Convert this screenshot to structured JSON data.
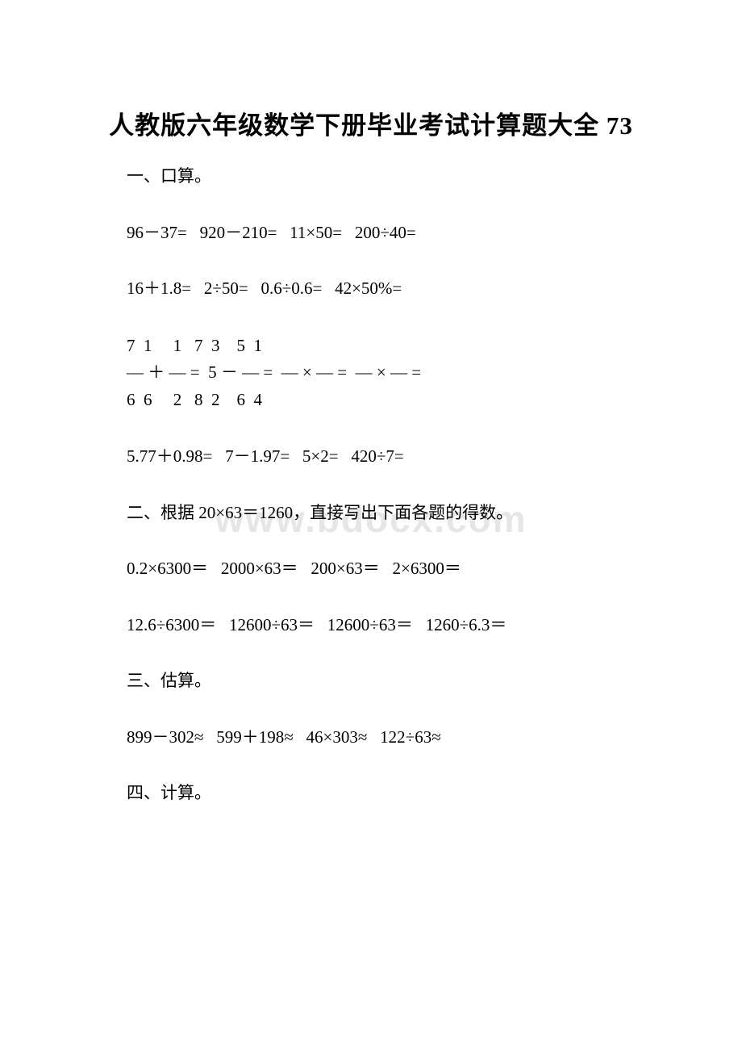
{
  "title": "人教版六年级数学下册毕业考试计算题大全 73",
  "watermark": "www.bdocx.com",
  "sections": {
    "s1": {
      "heading": "一、口算。",
      "line1": "96－37=   920－210=   11×50=   200÷40=",
      "line2": "16＋1.8=   2÷50=   0.6÷0.6=   42×50%=",
      "frac1": "7  1     1   7  3    5  1",
      "frac2": "— ＋ — =  5 － — =  — × — =  — × — =",
      "frac3": "6  6     2   8  2    6  4",
      "line3": "5.77＋0.98=   7－1.97=   5×2=   420÷7="
    },
    "s2": {
      "heading": "二、根据 20×63＝1260，直接写出下面各题的得数。",
      "line1": "0.2×6300＝   2000×63＝   200×63＝   2×6300＝",
      "line2": "12.6÷6300＝   12600÷63＝   12600÷63＝   1260÷6.3＝"
    },
    "s3": {
      "heading": "三、估算。",
      "line1": "899－302≈   599＋198≈   46×303≈   122÷63≈"
    },
    "s4": {
      "heading": "四、计算。"
    }
  },
  "style": {
    "title_fontsize": 31,
    "body_fontsize": 21,
    "text_color": "#000000",
    "background_color": "#ffffff",
    "watermark_color": "#e6e6e6",
    "watermark_fontsize": 46
  }
}
